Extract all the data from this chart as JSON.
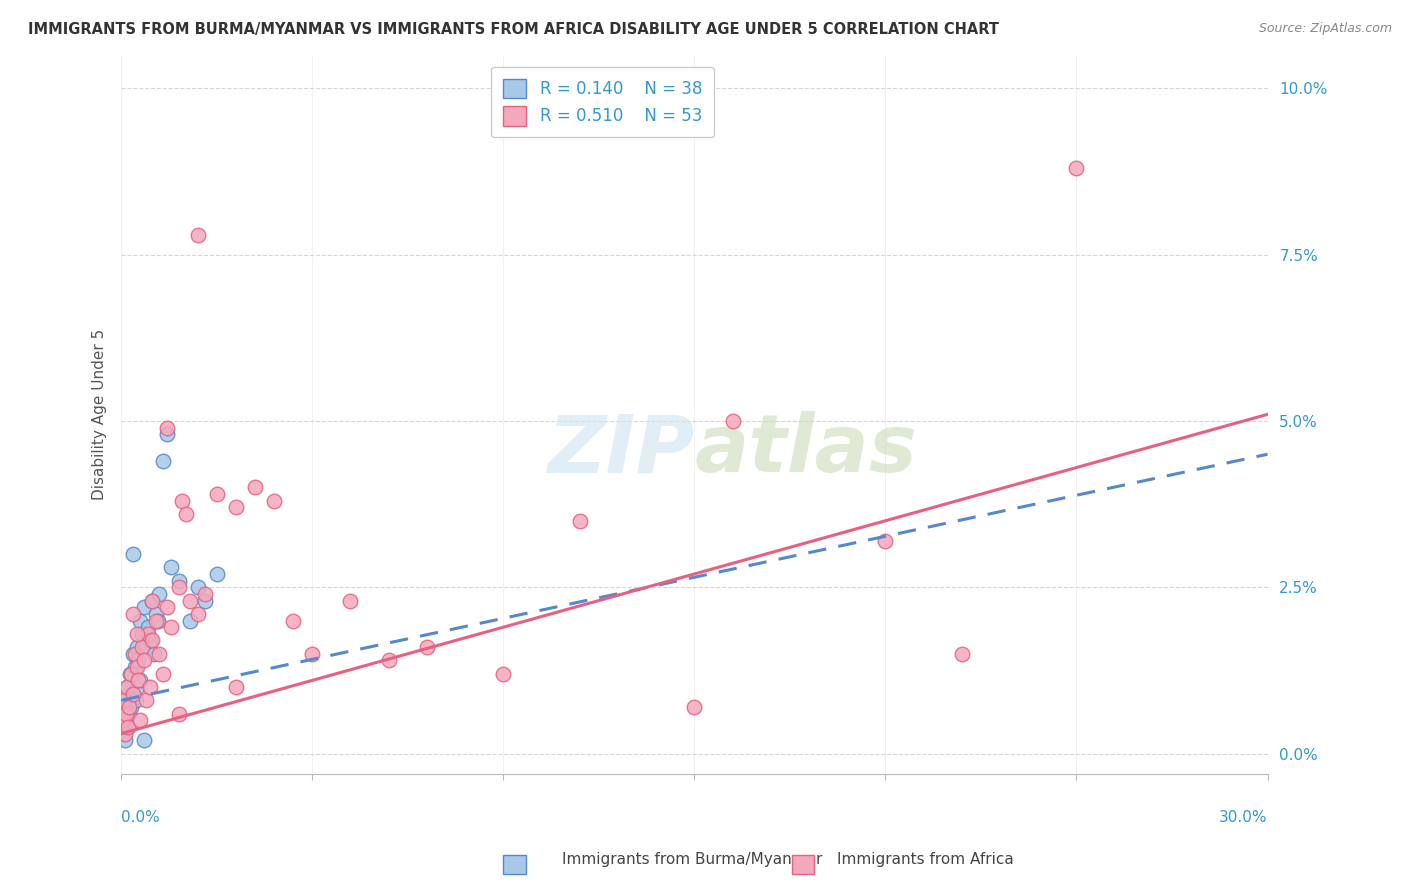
{
  "title": "IMMIGRANTS FROM BURMA/MYANMAR VS IMMIGRANTS FROM AFRICA DISABILITY AGE UNDER 5 CORRELATION CHART",
  "source": "Source: ZipAtlas.com",
  "ylabel": "Disability Age Under 5",
  "ytick_values": [
    0.0,
    2.5,
    5.0,
    7.5,
    10.0
  ],
  "xlim": [
    0.0,
    30.0
  ],
  "ylim": [
    -0.3,
    10.5
  ],
  "color_blue": "#A8C8E8",
  "color_pink": "#F4A8BC",
  "color_blue_line": "#5588CC",
  "color_pink_line": "#E86080",
  "color_axis_label": "#3399CC",
  "watermark_color": "#D0E4F0",
  "blue_scatter_x": [
    0.05,
    0.08,
    0.1,
    0.12,
    0.15,
    0.18,
    0.2,
    0.22,
    0.25,
    0.28,
    0.3,
    0.35,
    0.38,
    0.4,
    0.42,
    0.45,
    0.48,
    0.5,
    0.55,
    0.6,
    0.65,
    0.7,
    0.75,
    0.8,
    0.85,
    0.9,
    0.95,
    1.0,
    1.1,
    1.2,
    1.3,
    1.5,
    1.8,
    2.0,
    2.2,
    2.5,
    0.3,
    0.6
  ],
  "blue_scatter_y": [
    0.3,
    0.5,
    0.2,
    0.8,
    1.0,
    0.4,
    0.6,
    1.2,
    0.7,
    0.9,
    1.5,
    1.3,
    0.8,
    1.0,
    1.6,
    1.4,
    1.1,
    2.0,
    1.8,
    2.2,
    1.6,
    1.9,
    1.7,
    2.3,
    1.5,
    2.1,
    2.0,
    2.4,
    4.4,
    4.8,
    2.8,
    2.6,
    2.0,
    2.5,
    2.3,
    2.7,
    3.0,
    0.2
  ],
  "pink_scatter_x": [
    0.05,
    0.08,
    0.1,
    0.12,
    0.15,
    0.18,
    0.2,
    0.25,
    0.3,
    0.35,
    0.4,
    0.45,
    0.5,
    0.55,
    0.6,
    0.65,
    0.7,
    0.75,
    0.8,
    0.9,
    1.0,
    1.1,
    1.2,
    1.3,
    1.5,
    1.6,
    1.7,
    1.8,
    2.0,
    2.2,
    2.5,
    3.0,
    3.5,
    4.0,
    4.5,
    5.0,
    6.0,
    7.0,
    8.0,
    10.0,
    12.0,
    15.0,
    16.0,
    20.0,
    22.0,
    25.0,
    0.3,
    0.4,
    0.8,
    1.2,
    1.5,
    2.0,
    3.0
  ],
  "pink_scatter_y": [
    0.5,
    0.8,
    0.3,
    0.6,
    1.0,
    0.4,
    0.7,
    1.2,
    0.9,
    1.5,
    1.3,
    1.1,
    0.5,
    1.6,
    1.4,
    0.8,
    1.8,
    1.0,
    1.7,
    2.0,
    1.5,
    1.2,
    2.2,
    1.9,
    2.5,
    3.8,
    3.6,
    2.3,
    2.1,
    2.4,
    3.9,
    3.7,
    4.0,
    3.8,
    2.0,
    1.5,
    2.3,
    1.4,
    1.6,
    1.2,
    3.5,
    0.7,
    5.0,
    3.2,
    1.5,
    8.8,
    2.1,
    1.8,
    2.3,
    4.9,
    0.6,
    7.8,
    1.0
  ],
  "blue_line_x": [
    0.0,
    30.0
  ],
  "blue_line_y": [
    0.8,
    4.5
  ],
  "pink_line_x": [
    0.0,
    30.0
  ],
  "pink_line_y": [
    0.3,
    5.1
  ]
}
